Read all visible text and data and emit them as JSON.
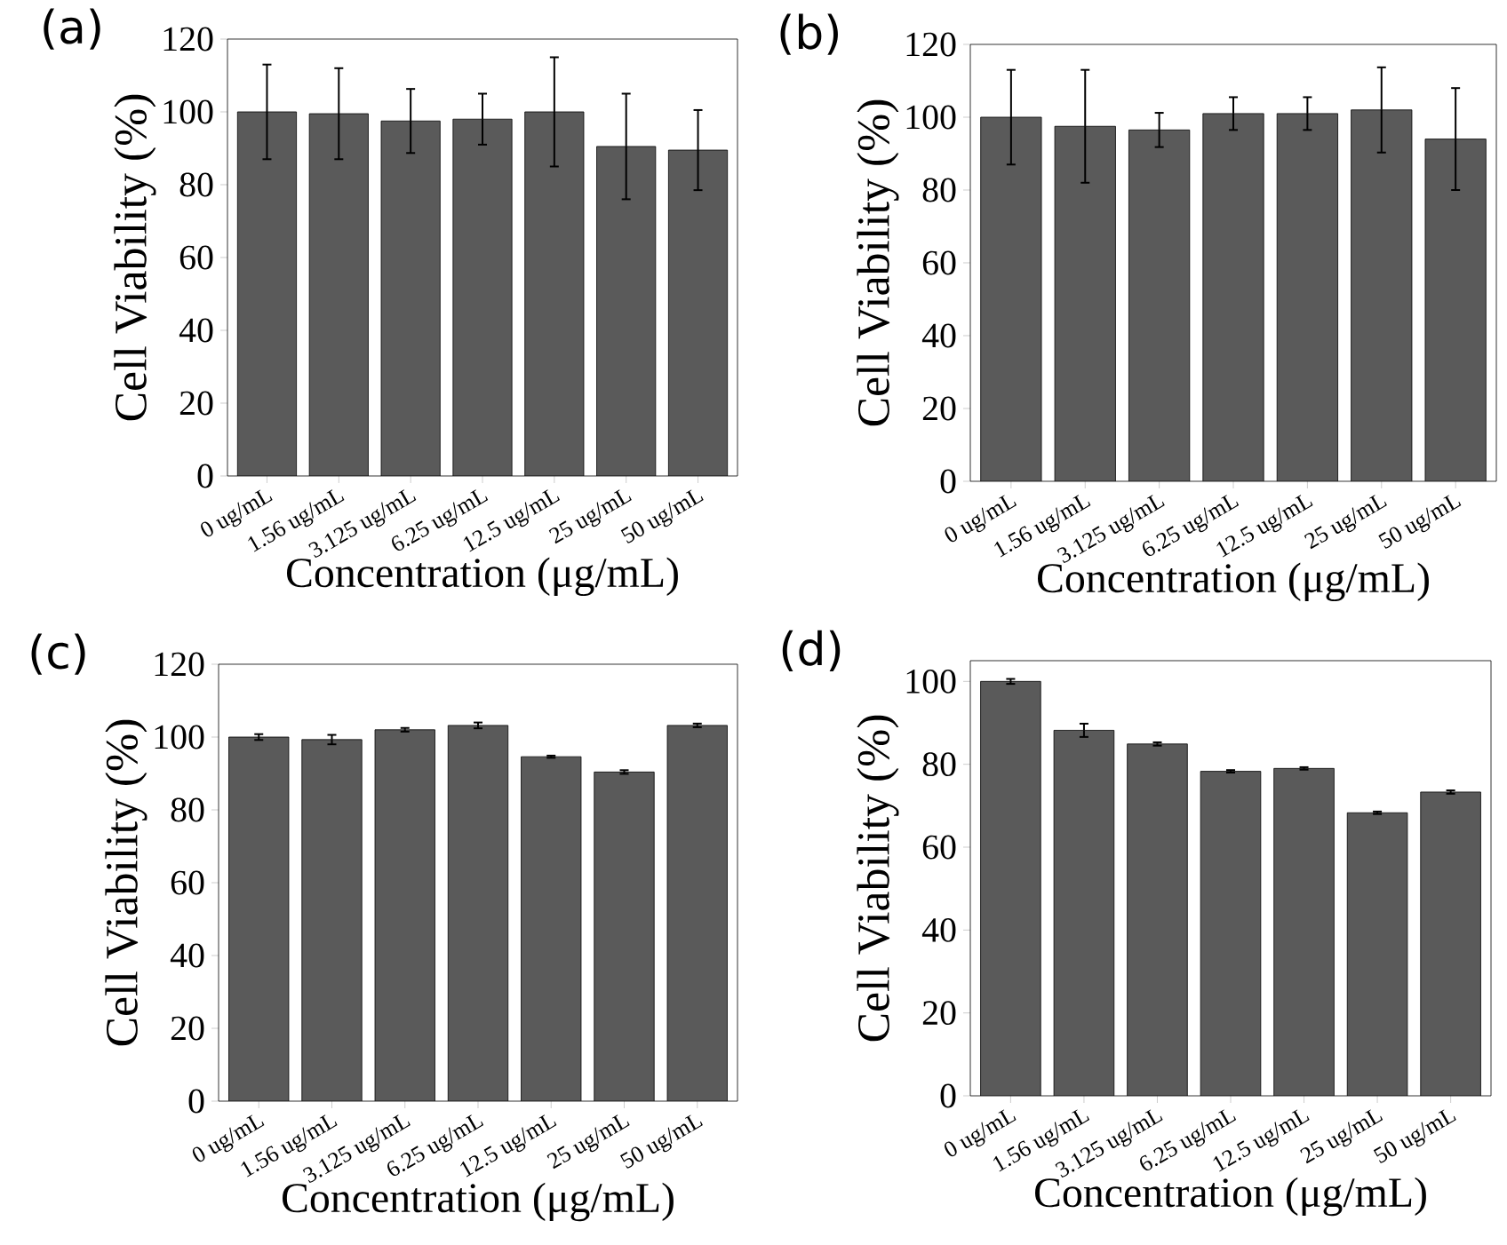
{
  "chart_data": [
    {
      "type": "bar",
      "title": "(a)",
      "xlabel": "Concentration (μg/mL)",
      "ylabel": "Cell Viability (%)",
      "categories": [
        "0 ug/mL",
        "1.56 ug/mL",
        "3.125 ug/mL",
        "6.25 ug/mL",
        "12.5 ug/mL",
        "25 ug/mL",
        "50 ug/mL"
      ],
      "values": [
        100,
        99.5,
        97.5,
        98,
        100,
        90.5,
        89.5
      ],
      "errors": [
        13,
        12.5,
        8.8,
        7,
        15,
        14.5,
        11
      ],
      "color": "#5a5a5a",
      "ylim": [
        0,
        120
      ],
      "yticks": [
        0,
        20,
        40,
        60,
        80,
        100,
        120
      ]
    },
    {
      "type": "bar",
      "title": "(b)",
      "xlabel": "Concentration (μg/mL)",
      "ylabel": "Cell Viability (%)",
      "categories": [
        "0 ug/mL",
        "1.56 ug/mL",
        "3.125 ug/mL",
        "6.25 ug/mL",
        "12.5 ug/mL",
        "25 ug/mL",
        "50 ug/mL"
      ],
      "values": [
        100,
        97.5,
        96.5,
        101,
        101,
        102,
        94
      ],
      "errors": [
        13,
        15.5,
        4.7,
        4.5,
        4.5,
        11.7,
        14
      ],
      "color": "#5a5a5a",
      "ylim": [
        0,
        120
      ],
      "yticks": [
        0,
        20,
        40,
        60,
        80,
        100,
        120
      ]
    },
    {
      "type": "bar",
      "title": "(c)",
      "xlabel": "Concentration (μg/mL)",
      "ylabel": "Cell Viability (%)",
      "categories": [
        "0 ug/mL",
        "1.56 ug/mL",
        "3.125 ug/mL",
        "6.25 ug/mL",
        "12.5 ug/mL",
        "25 ug/mL",
        "50 ug/mL"
      ],
      "values": [
        100,
        99.3,
        102,
        103.2,
        94.6,
        90.4,
        103.2
      ],
      "errors": [
        0.8,
        1.3,
        0.5,
        0.8,
        0.3,
        0.5,
        0.5
      ],
      "color": "#5a5a5a",
      "ylim": [
        0,
        120
      ],
      "yticks": [
        0,
        20,
        40,
        60,
        80,
        100,
        120
      ]
    },
    {
      "type": "bar",
      "title": "(d)",
      "xlabel": "Concentration (μg/mL)",
      "ylabel": "Cell Viability (%)",
      "categories": [
        "0 ug/mL",
        "1.56 ug/mL",
        "3.125 ug/mL",
        "6.25 ug/mL",
        "12.5 ug/mL",
        "25 ug/mL",
        "50 ug/mL"
      ],
      "values": [
        100,
        88.2,
        84.9,
        78.3,
        79,
        68.3,
        73.3
      ],
      "errors": [
        0.6,
        1.6,
        0.4,
        0.3,
        0.3,
        0.3,
        0.4
      ],
      "color": "#5a5a5a",
      "ylim": [
        0,
        105
      ],
      "yticks": [
        0,
        20,
        40,
        60,
        80,
        100
      ]
    }
  ]
}
